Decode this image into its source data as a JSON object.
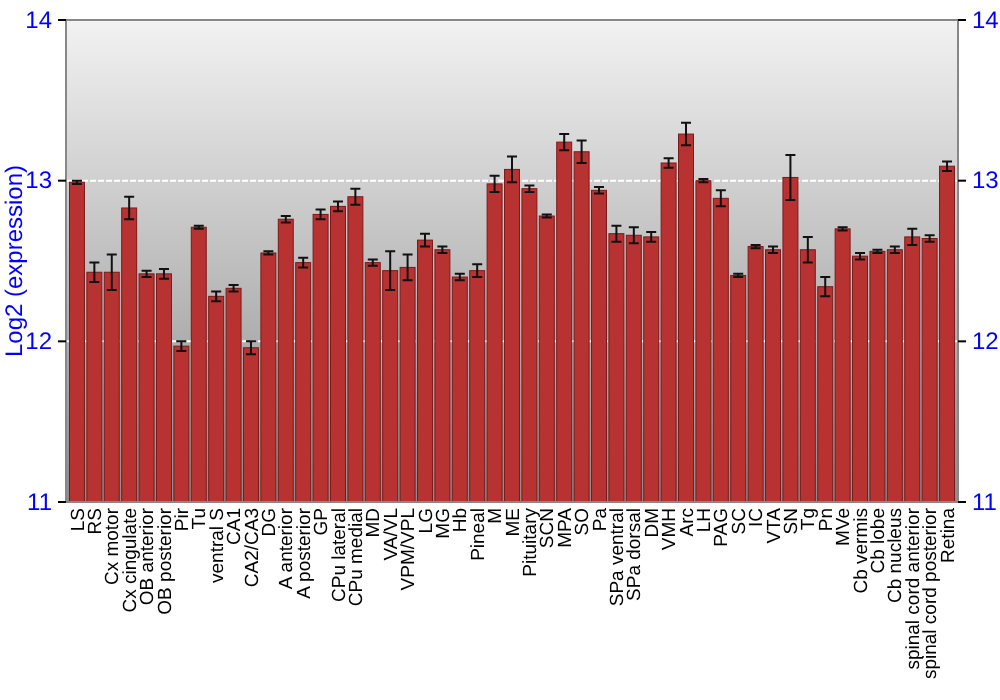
{
  "chart_data": {
    "type": "bar",
    "ylabel": "Log2 (expression)",
    "categories": [
      "LS",
      "RS",
      "Cx motor",
      "Cx cingulate",
      "OB anterior",
      "OB posterior",
      "Pir",
      "Tu",
      "ventral S",
      "CA1",
      "CA2/CA3",
      "DG",
      "A anterior",
      "A posterior",
      "GP",
      "CPu lateral",
      "CPu medial",
      "MD",
      "VA/VL",
      "VPM/VPL",
      "LG",
      "MG",
      "Hb",
      "Pineal",
      "M",
      "ME",
      "Pituitary",
      "SCN",
      "MPA",
      "SO",
      "Pa",
      "SPa ventral",
      "SPa dorsal",
      "DM",
      "VMH",
      "Arc",
      "LH",
      "PAG",
      "SC",
      "IC",
      "VTA",
      "SN",
      "Tg",
      "Pn",
      "MVe",
      "Cb vermis",
      "Cb lobe",
      "Cb nucleus",
      "spinal cord anterior",
      "spinal cord posterior",
      "Retina"
    ],
    "values": [
      12.99,
      12.43,
      12.43,
      12.83,
      12.42,
      12.42,
      11.97,
      12.71,
      12.28,
      12.33,
      11.96,
      12.55,
      12.76,
      12.49,
      12.79,
      12.84,
      12.9,
      12.49,
      12.44,
      12.46,
      12.63,
      12.57,
      12.4,
      12.44,
      12.98,
      13.07,
      12.95,
      12.78,
      13.24,
      13.18,
      12.94,
      12.67,
      12.66,
      12.65,
      13.11,
      13.29,
      13.0,
      12.89,
      12.41,
      12.59,
      12.57,
      13.02,
      12.57,
      12.34,
      12.7,
      12.53,
      12.56,
      12.57,
      12.65,
      12.64,
      13.09
    ],
    "errors": [
      0.01,
      0.06,
      0.11,
      0.07,
      0.02,
      0.03,
      0.03,
      0.01,
      0.03,
      0.02,
      0.04,
      0.01,
      0.02,
      0.03,
      0.03,
      0.03,
      0.05,
      0.02,
      0.12,
      0.08,
      0.04,
      0.02,
      0.02,
      0.04,
      0.05,
      0.08,
      0.02,
      0.01,
      0.05,
      0.07,
      0.02,
      0.05,
      0.05,
      0.03,
      0.03,
      0.07,
      0.01,
      0.05,
      0.01,
      0.01,
      0.02,
      0.14,
      0.08,
      0.06,
      0.01,
      0.02,
      0.01,
      0.02,
      0.05,
      0.02,
      0.03
    ],
    "color": "#b83232",
    "ylim": [
      11,
      14
    ],
    "yticks": [
      11,
      12,
      13,
      14
    ],
    "y2lim": [
      11,
      14
    ],
    "y2ticks": [
      11,
      12,
      13,
      14
    ],
    "grid": "y"
  }
}
